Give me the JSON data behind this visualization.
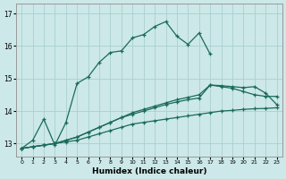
{
  "xlabel": "Humidex (Indice chaleur)",
  "background_color": "#cce8e8",
  "grid_color": "#aad0d0",
  "line_color": "#1a6b5a",
  "xlim": [
    -0.5,
    23.5
  ],
  "ylim": [
    12.6,
    17.3
  ],
  "yticks": [
    13,
    14,
    15,
    16,
    17
  ],
  "xticks": [
    0,
    1,
    2,
    3,
    4,
    5,
    6,
    7,
    8,
    9,
    10,
    11,
    12,
    13,
    14,
    15,
    16,
    17,
    18,
    19,
    20,
    21,
    22,
    23
  ],
  "curve_x": [
    0,
    1,
    2,
    3,
    4,
    5,
    6,
    7,
    8,
    9,
    10,
    11,
    12,
    13,
    14,
    15,
    16,
    17
  ],
  "curve_y": [
    12.85,
    13.1,
    13.75,
    12.95,
    13.65,
    14.85,
    15.05,
    15.5,
    15.8,
    15.85,
    16.25,
    16.35,
    16.6,
    16.75,
    16.3,
    16.05,
    16.4,
    15.75
  ],
  "fan1_x": [
    0,
    1,
    2,
    3,
    4,
    5,
    6,
    7,
    8,
    9,
    10,
    11,
    12,
    13,
    14,
    15,
    16,
    17,
    18,
    19,
    20,
    21,
    22,
    23
  ],
  "fan1_y": [
    12.85,
    12.9,
    12.95,
    13.0,
    13.05,
    13.1,
    13.2,
    13.3,
    13.4,
    13.5,
    13.6,
    13.65,
    13.7,
    13.75,
    13.8,
    13.85,
    13.9,
    13.95,
    14.0,
    14.02,
    14.05,
    14.07,
    14.08,
    14.1
  ],
  "fan2_x": [
    0,
    1,
    2,
    3,
    4,
    5,
    6,
    7,
    8,
    9,
    10,
    11,
    12,
    13,
    14,
    15,
    16,
    17,
    18,
    19,
    20,
    21,
    22,
    23
  ],
  "fan2_y": [
    12.85,
    12.9,
    12.95,
    13.0,
    13.1,
    13.2,
    13.35,
    13.5,
    13.65,
    13.8,
    13.9,
    14.0,
    14.1,
    14.2,
    14.28,
    14.35,
    14.4,
    14.8,
    14.75,
    14.7,
    14.6,
    14.5,
    14.45,
    14.45
  ],
  "fan3_x": [
    0,
    1,
    2,
    3,
    4,
    5,
    6,
    7,
    8,
    9,
    10,
    11,
    12,
    13,
    14,
    15,
    16,
    17,
    18,
    19,
    20,
    21,
    22,
    23
  ],
  "fan3_y": [
    12.85,
    12.9,
    12.95,
    13.0,
    13.1,
    13.2,
    13.35,
    13.5,
    13.65,
    13.8,
    13.95,
    14.05,
    14.15,
    14.25,
    14.35,
    14.42,
    14.5,
    14.8,
    14.78,
    14.75,
    14.72,
    14.75,
    14.55,
    14.2
  ]
}
